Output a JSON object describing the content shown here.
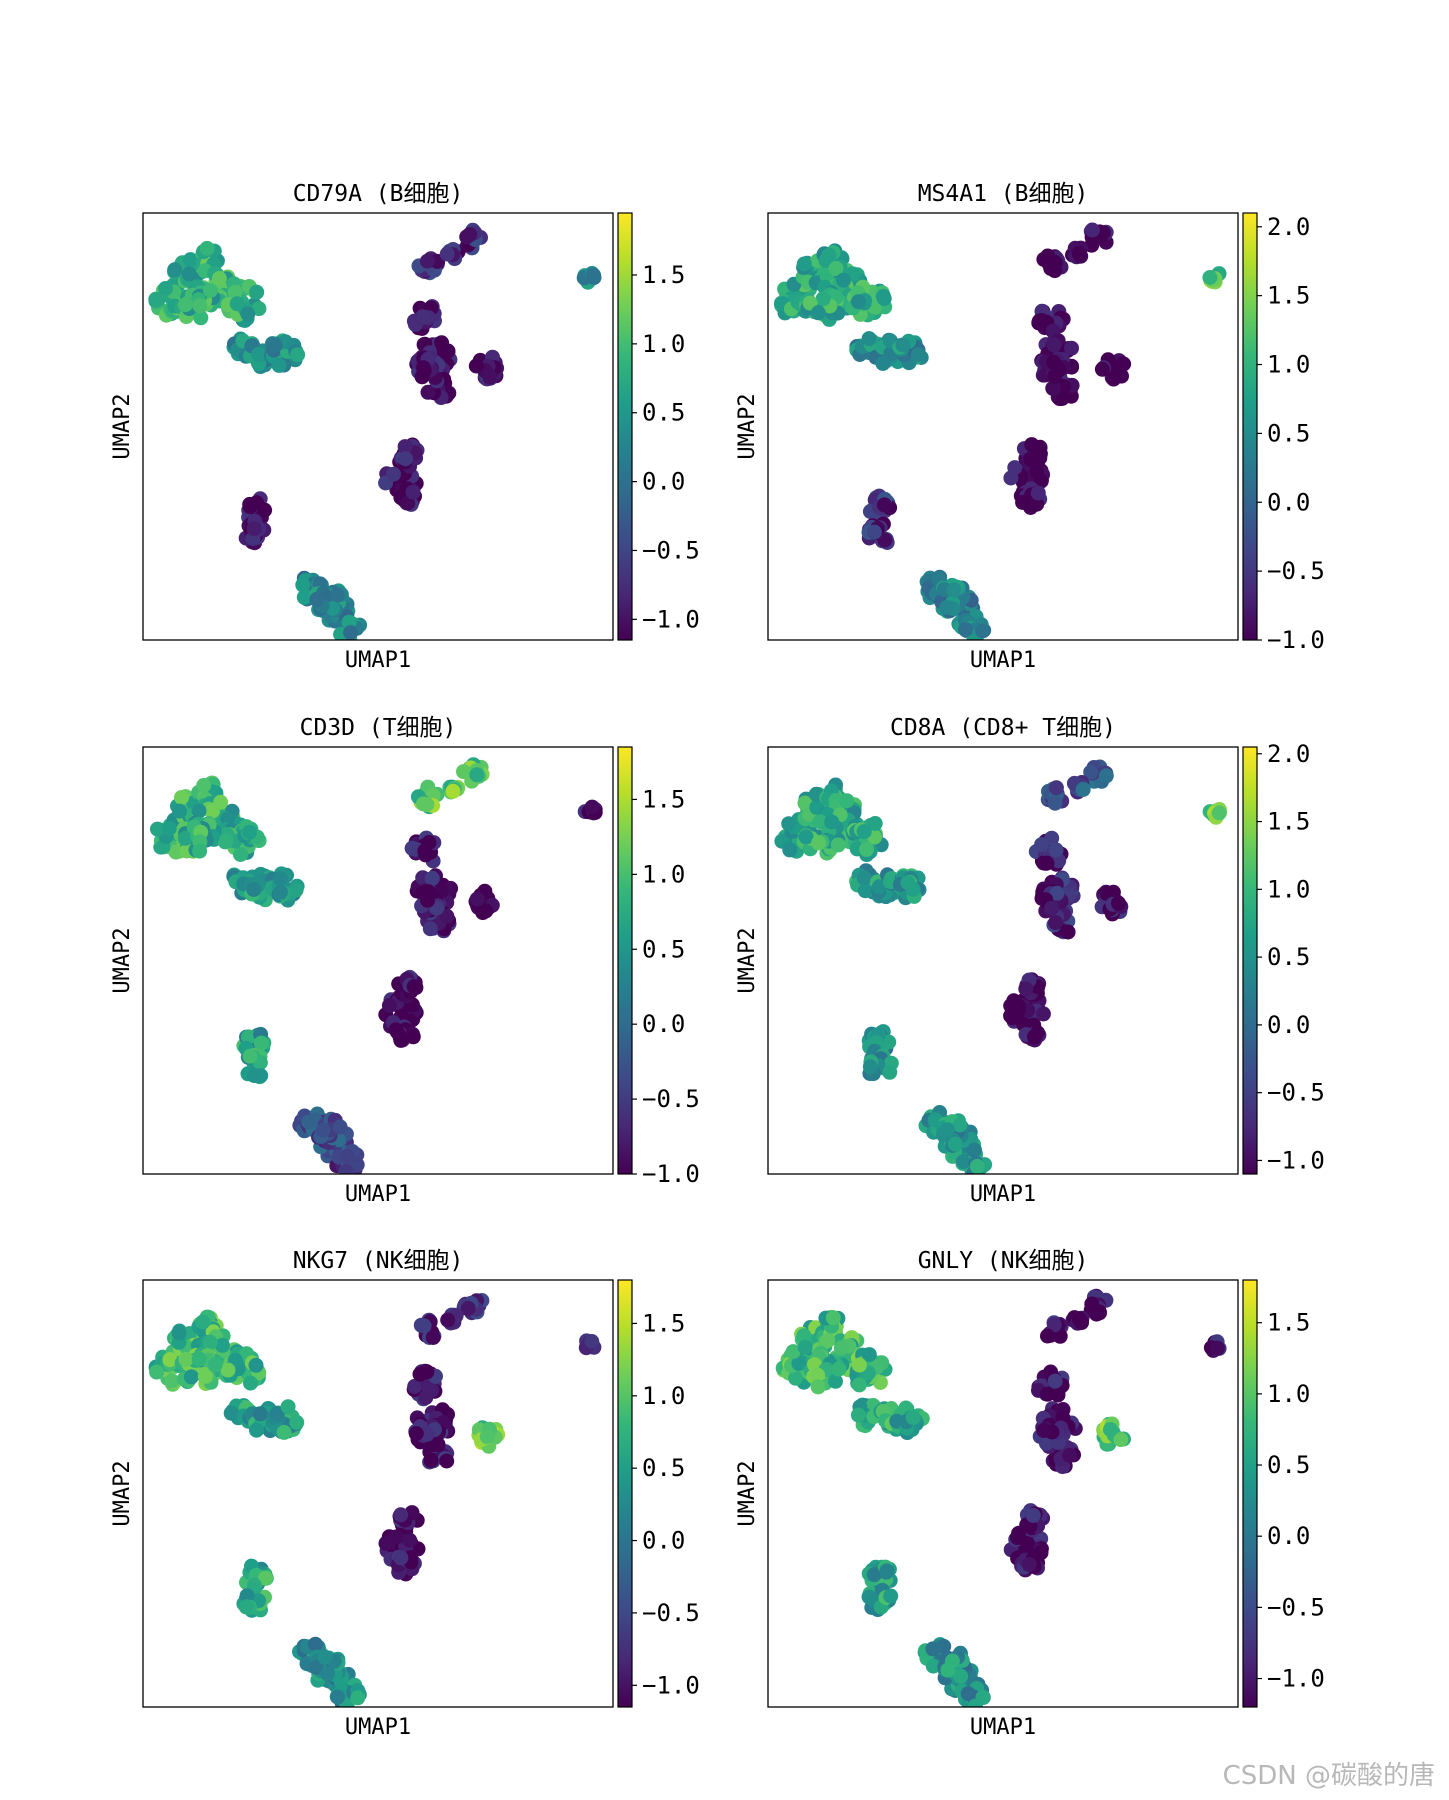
{
  "figure": {
    "watermark": "CSDN @碳酸的唐",
    "colormap": [
      "#440154",
      "#482878",
      "#3e4989",
      "#31688e",
      "#26828e",
      "#1f9e89",
      "#35b779",
      "#6ece58",
      "#b5de2b",
      "#fde725"
    ]
  },
  "chart_data": [
    {
      "type": "scatter",
      "title": "CD79A (B细胞)",
      "xlabel": "UMAP1",
      "ylabel": "UMAP2",
      "colorbar": {
        "min": -1.15,
        "max": 1.95,
        "ticks": [
          -1.0,
          -0.5,
          0.0,
          0.5,
          1.0,
          1.5
        ],
        "tick_labels": [
          "−1.0",
          "−0.5",
          "0.0",
          "0.5",
          "1.0",
          "1.5"
        ]
      },
      "cluster_values": {
        "B1": 0.8,
        "B2": 0.4,
        "T1": -1.0,
        "T2": -0.8,
        "T3": -1.0,
        "ISO": 0.3,
        "MONO": -1.0,
        "DC": -1.0,
        "NK": 0.3
      }
    },
    {
      "type": "scatter",
      "title": "MS4A1 (B细胞)",
      "xlabel": "UMAP1",
      "ylabel": "UMAP2",
      "colorbar": {
        "min": -1.0,
        "max": 2.1,
        "ticks": [
          -1.0,
          -0.5,
          0.0,
          0.5,
          1.0,
          1.5,
          2.0
        ],
        "tick_labels": [
          "−1.0",
          "−0.5",
          "0.0",
          "0.5",
          "1.0",
          "1.5",
          "2.0"
        ]
      },
      "cluster_values": {
        "B1": 0.9,
        "B2": 0.5,
        "T1": -1.0,
        "T2": -1.0,
        "T3": -1.0,
        "ISO": 1.3,
        "MONO": -1.0,
        "DC": -0.6,
        "NK": 0.4
      }
    },
    {
      "type": "scatter",
      "title": "CD3D (T细胞)",
      "xlabel": "UMAP1",
      "ylabel": "UMAP2",
      "colorbar": {
        "min": -1.0,
        "max": 1.85,
        "ticks": [
          -1.0,
          -0.5,
          0.0,
          0.5,
          1.0,
          1.5
        ],
        "tick_labels": [
          "−1.0",
          "−0.5",
          "0.0",
          "0.5",
          "1.0",
          "1.5"
        ]
      },
      "cluster_values": {
        "B1": 0.8,
        "B2": 0.5,
        "T1": -0.9,
        "T2": 1.1,
        "T3": -1.0,
        "ISO": -1.0,
        "MONO": -1.0,
        "DC": 0.6,
        "NK": -0.4
      }
    },
    {
      "type": "scatter",
      "title": "CD8A (CD8+ T细胞)",
      "xlabel": "UMAP1",
      "ylabel": "UMAP2",
      "colorbar": {
        "min": -1.1,
        "max": 2.05,
        "ticks": [
          -1.0,
          -0.5,
          0.0,
          0.5,
          1.0,
          1.5,
          2.0
        ],
        "tick_labels": [
          "−1.0",
          "−0.5",
          "0.0",
          "0.5",
          "1.0",
          "1.5",
          "2.0"
        ]
      },
      "cluster_values": {
        "B1": 0.8,
        "B2": 0.6,
        "T1": -0.8,
        "T2": -0.3,
        "T3": -1.0,
        "ISO": 1.3,
        "MONO": -1.1,
        "DC": 0.4,
        "NK": 0.5
      }
    },
    {
      "type": "scatter",
      "title": "NKG7 (NK细胞)",
      "xlabel": "UMAP1",
      "ylabel": "UMAP2",
      "colorbar": {
        "min": -1.15,
        "max": 1.8,
        "ticks": [
          -1.0,
          -0.5,
          0.0,
          0.5,
          1.0,
          1.5
        ],
        "tick_labels": [
          "−1.0",
          "−0.5",
          "0.0",
          "0.5",
          "1.0",
          "1.5"
        ]
      },
      "cluster_values": {
        "B1": 0.8,
        "B2": 0.5,
        "T1": -1.0,
        "T2": -0.9,
        "T3": 1.1,
        "ISO": -1.1,
        "MONO": -1.1,
        "DC": 0.6,
        "NK": 0.3
      }
    },
    {
      "type": "scatter",
      "title": "GNLY (NK细胞)",
      "xlabel": "UMAP1",
      "ylabel": "UMAP2",
      "colorbar": {
        "min": -1.2,
        "max": 1.8,
        "ticks": [
          -1.0,
          -0.5,
          0.0,
          0.5,
          1.0,
          1.5
        ],
        "tick_labels": [
          "−1.0",
          "−0.5",
          "0.0",
          "0.5",
          "1.0",
          "1.5"
        ]
      },
      "cluster_values": {
        "B1": 0.8,
        "B2": 0.6,
        "T1": -1.1,
        "T2": -1.1,
        "T3": 1.1,
        "ISO": -1.1,
        "MONO": -1.1,
        "DC": 0.5,
        "NK": 0.3
      }
    }
  ]
}
